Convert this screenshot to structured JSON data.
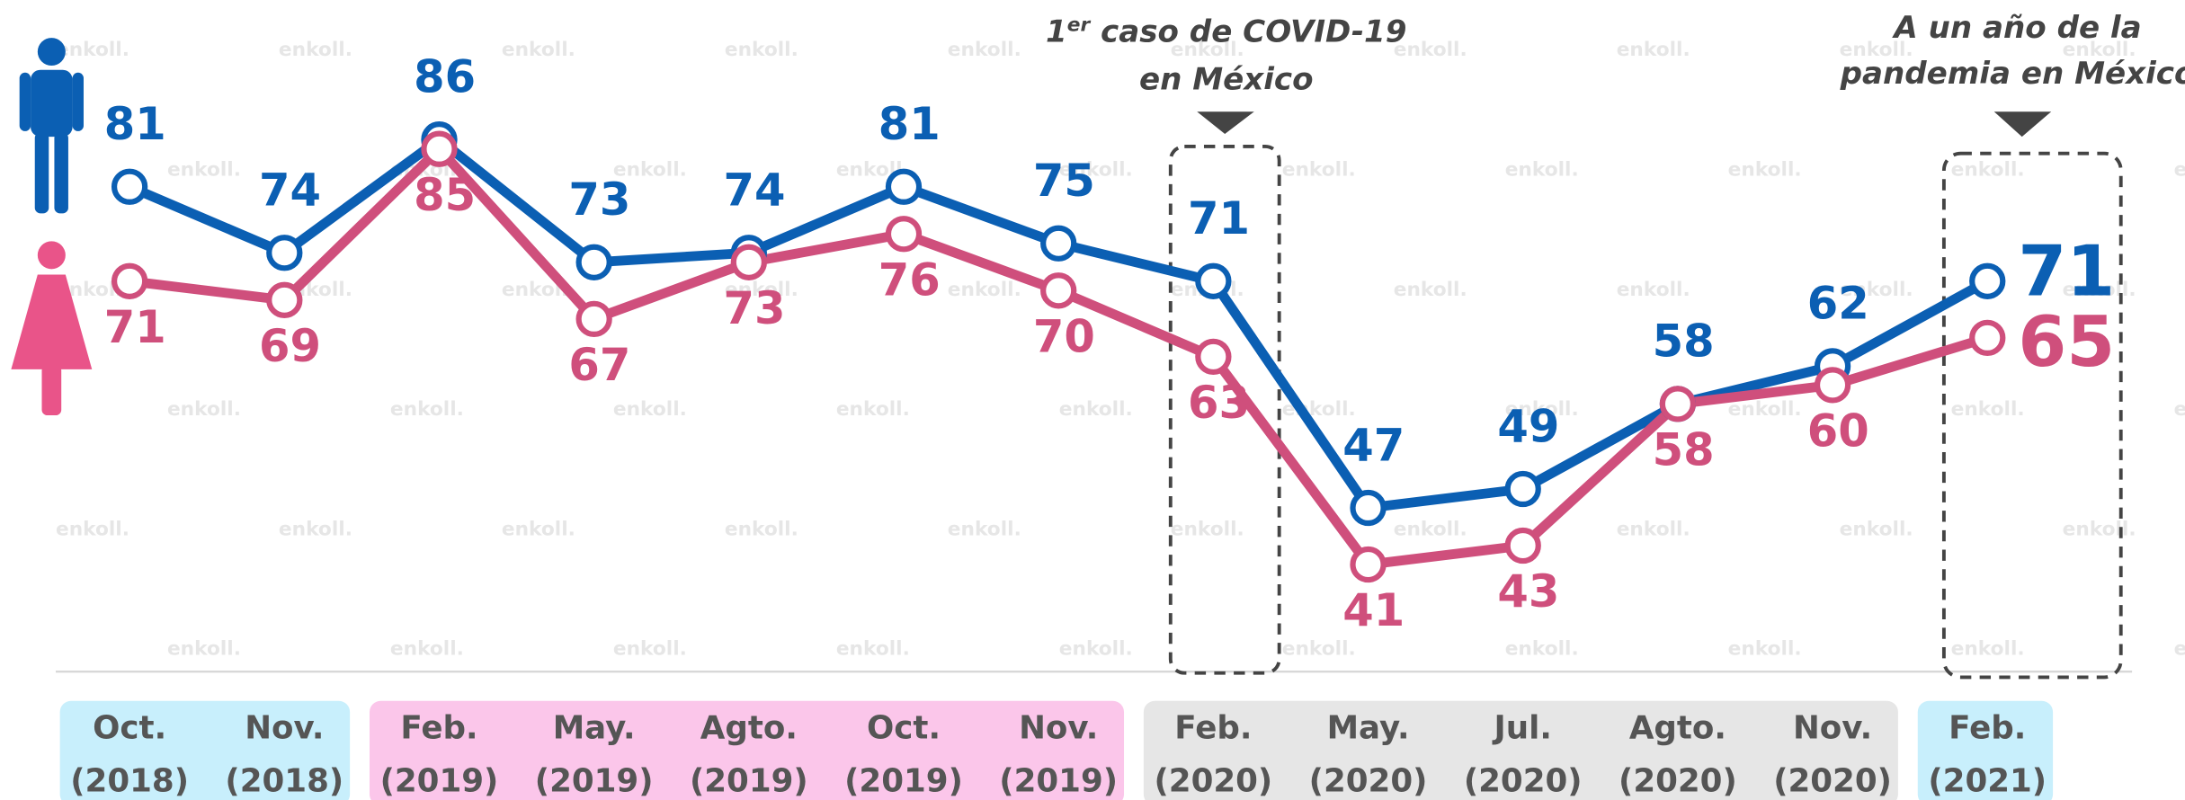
{
  "chart_data": {
    "type": "line",
    "watermark": "enkoll.",
    "categories": [
      [
        "Oct.",
        "(2018)"
      ],
      [
        "Nov.",
        "(2018)"
      ],
      [
        "Feb.",
        "(2019)"
      ],
      [
        "May.",
        "(2019)"
      ],
      [
        "Agto.",
        "(2019)"
      ],
      [
        "Oct.",
        "(2019)"
      ],
      [
        "Nov.",
        "(2019)"
      ],
      [
        "Feb.",
        "(2020)"
      ],
      [
        "May.",
        "(2020)"
      ],
      [
        "Jul.",
        "(2020)"
      ],
      [
        "Agto.",
        "(2020)"
      ],
      [
        "Nov.",
        "(2020)"
      ],
      [
        "Feb.",
        "(2021)"
      ]
    ],
    "category_colors": [
      "#c8effc",
      "#c8effc",
      "#fbc6ea",
      "#fbc6ea",
      "#fbc6ea",
      "#fbc6ea",
      "#fbc6ea",
      "#e6e6e6",
      "#e6e6e6",
      "#e6e6e6",
      "#e6e6e6",
      "#e6e6e6",
      "#c8effc"
    ],
    "series": [
      {
        "color": "#0b5fb3",
        "values": [
          81,
          74,
          86,
          73,
          74,
          81,
          75,
          71,
          47,
          49,
          58,
          62,
          71
        ]
      },
      {
        "color": "#cf4f7c",
        "values": [
          71,
          69,
          85,
          67,
          73,
          76,
          70,
          63,
          41,
          43,
          58,
          60,
          65
        ]
      }
    ],
    "annotations": [
      {
        "sup_base": "1",
        "sup": "er",
        "text": " caso de COVID-19",
        "text2": "en México"
      },
      {
        "text": "A un año de la",
        "text2": "pandemia en México"
      }
    ]
  }
}
